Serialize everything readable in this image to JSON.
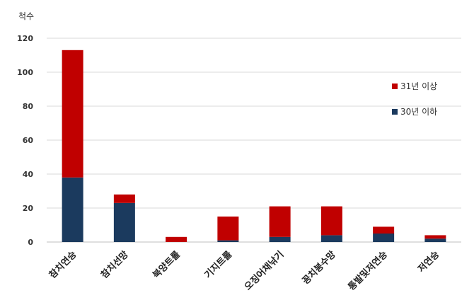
{
  "chart_data": {
    "type": "bar",
    "stacked": true,
    "ylabel": "척수",
    "ylim": [
      0,
      120
    ],
    "yticks": [
      0,
      20,
      40,
      60,
      80,
      100,
      120
    ],
    "grid": true,
    "legend_position": "right",
    "categories": [
      "참치연승",
      "참치선망",
      "북양트롤",
      "기지트롤",
      "오징어채낚기",
      "꽁치봉수망",
      "통발및저연승",
      "저연승"
    ],
    "series": [
      {
        "name": "30년 이하",
        "color": "#1b3a5e",
        "values": [
          38,
          23,
          0,
          1,
          3,
          4,
          5,
          2
        ]
      },
      {
        "name": "31년 이상",
        "color": "#c00000",
        "values": [
          75,
          5,
          3,
          14,
          18,
          17,
          4,
          2
        ]
      }
    ]
  }
}
